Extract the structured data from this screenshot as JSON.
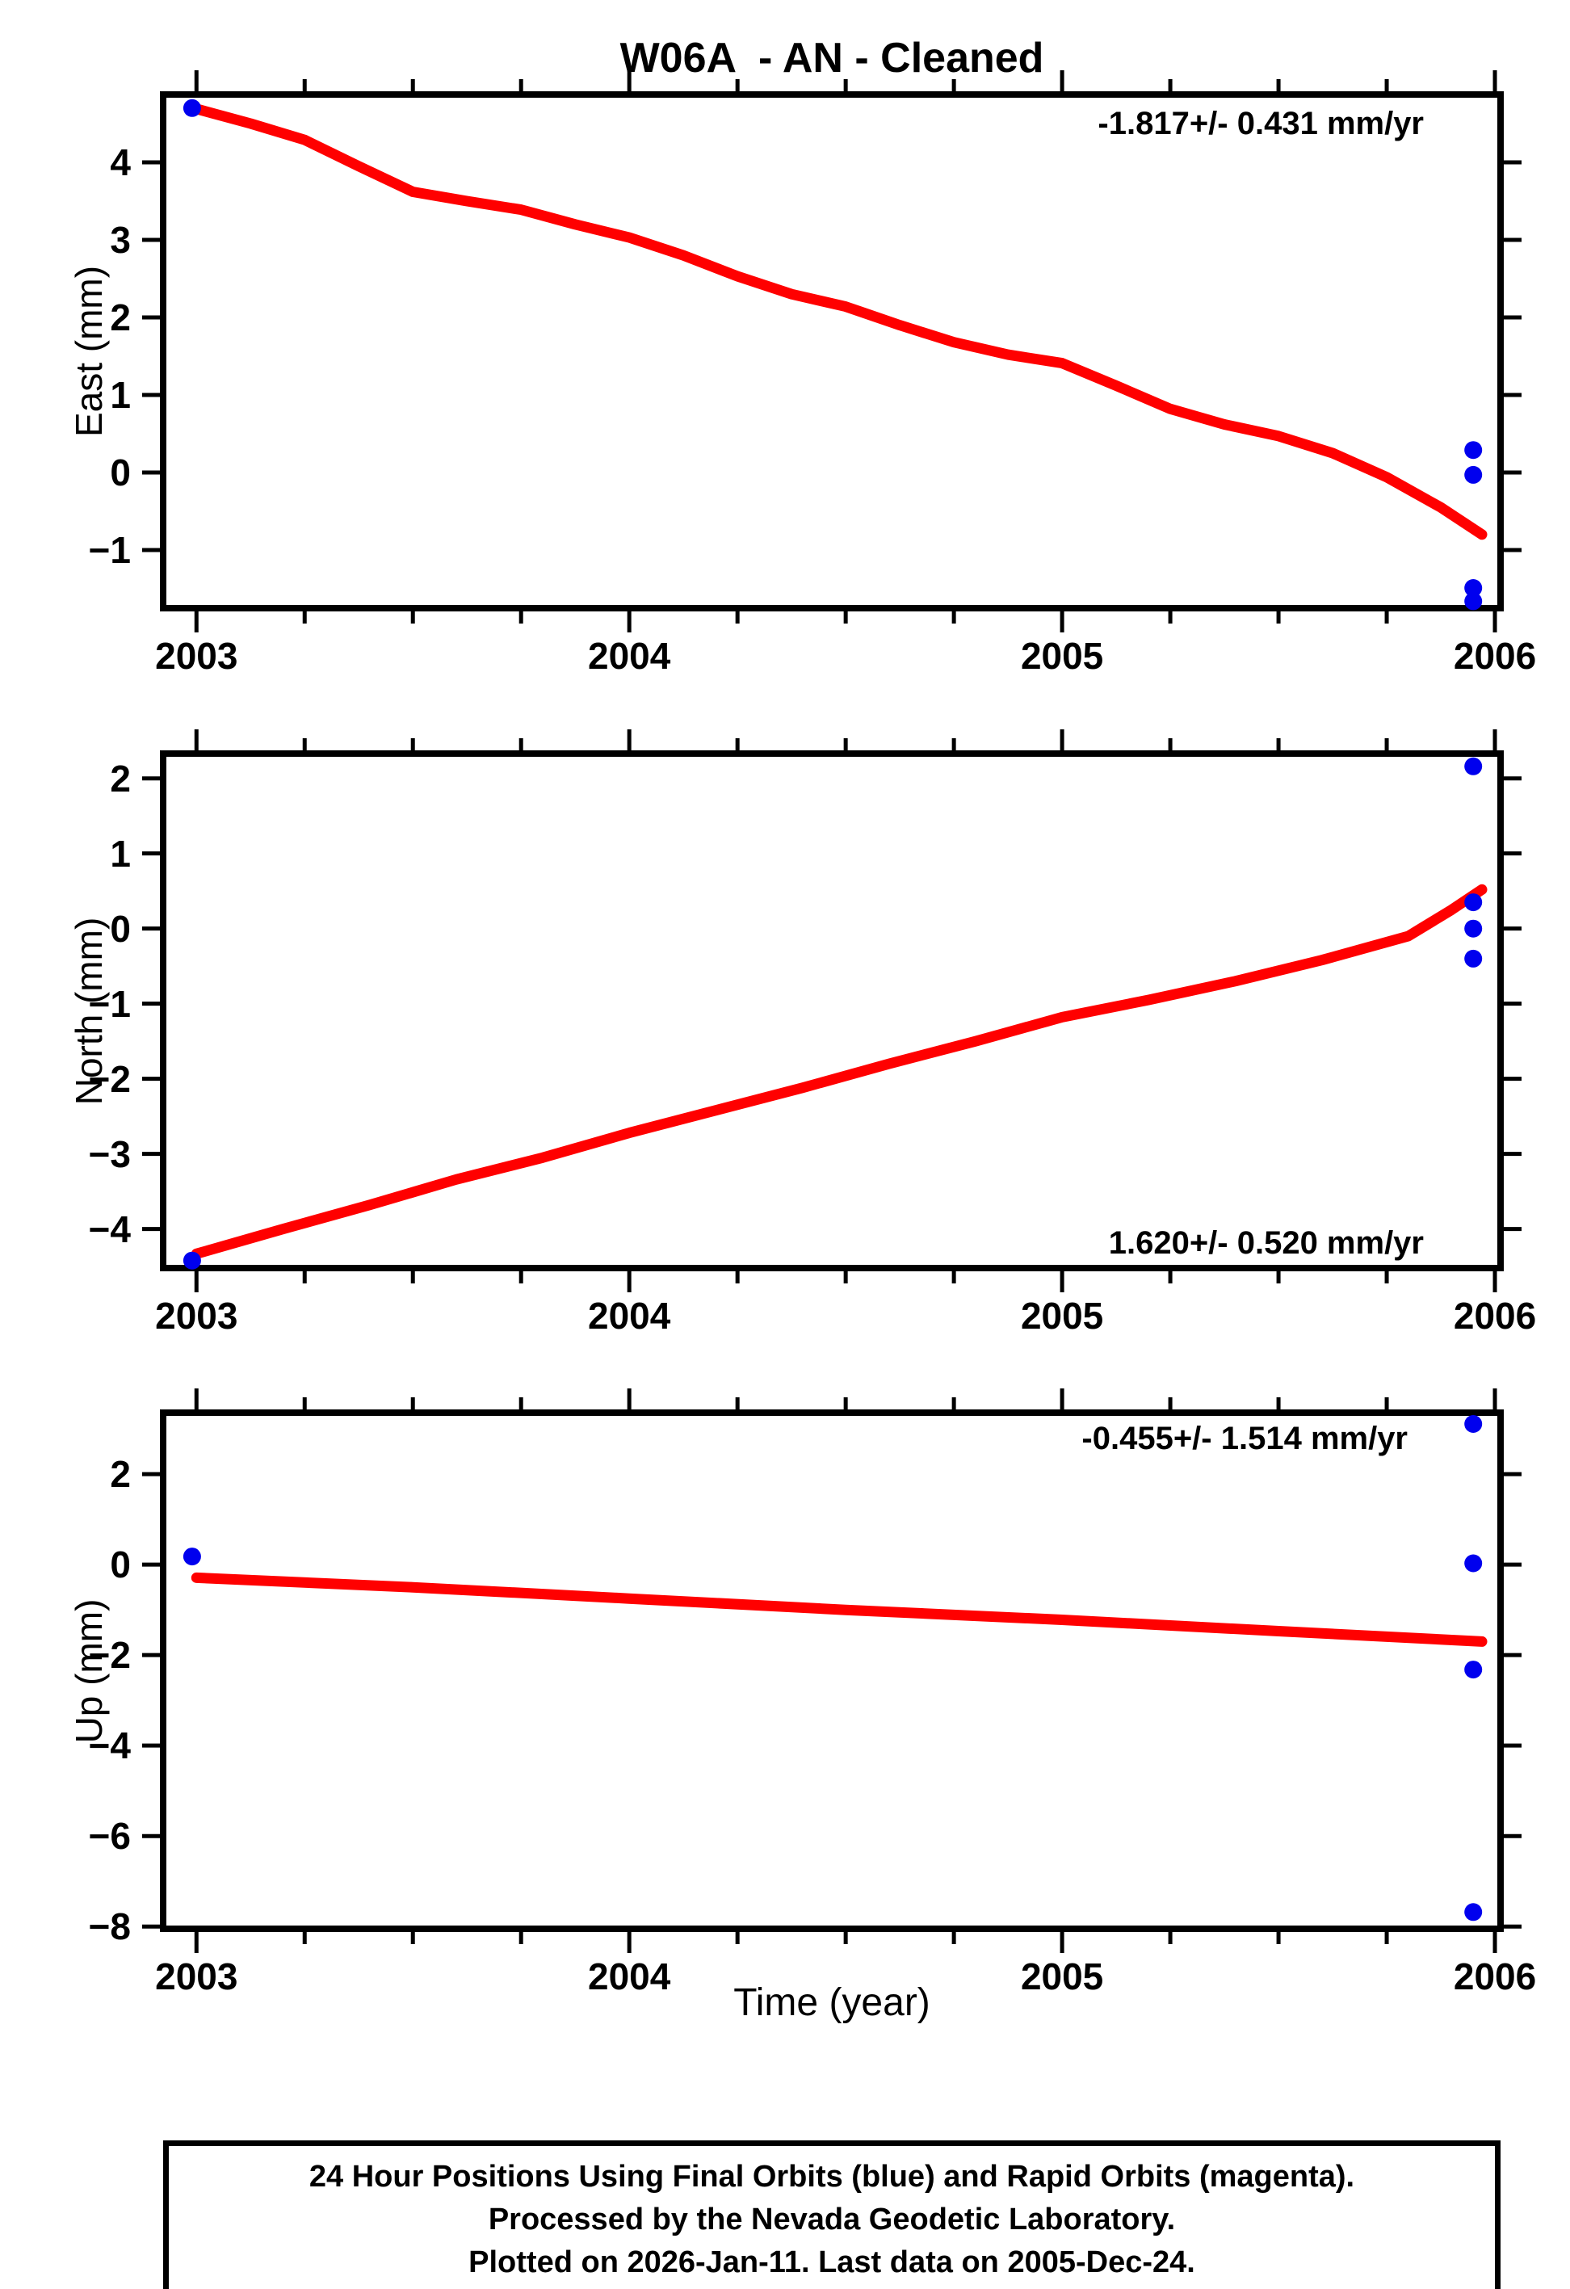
{
  "title": "W06A  - AN - Cleaned",
  "xlabel": "Time (year)",
  "footer": {
    "line1": "24 Hour Positions Using Final Orbits (blue) and Rapid Orbits (magenta).",
    "line2": "Processed by the Nevada Geodetic Laboratory.",
    "line3": "Plotted on 2026-Jan-11. Last data on 2005-Dec-24."
  },
  "colors": {
    "trend_line": "#ff0000",
    "final_orbit_point": "#0000ee",
    "rapid_orbit_point": "#ff00ff",
    "axis": "#000000"
  },
  "chart_data": [
    {
      "type": "line",
      "name": "east",
      "ylabel": "East (mm)",
      "annotation": "-1.817+/- 0.431 mm/yr",
      "annotation_pos": "top-right",
      "annotation_offset": {
        "top": 14,
        "right": 95
      },
      "xlim": [
        2002.923,
        2006.013
      ],
      "ylim": [
        -1.75,
        4.875
      ],
      "yticks": [
        -1,
        0,
        1,
        2,
        3,
        4
      ],
      "xticks": [
        2003,
        2004,
        2005,
        2006
      ],
      "xminor_step": 0.25,
      "line": [
        [
          2003.0,
          4.69
        ],
        [
          2003.125,
          4.5
        ],
        [
          2003.25,
          4.29
        ],
        [
          2003.375,
          3.95
        ],
        [
          2003.5,
          3.62
        ],
        [
          2003.625,
          3.5
        ],
        [
          2003.75,
          3.39
        ],
        [
          2003.875,
          3.2
        ],
        [
          2004.0,
          3.03
        ],
        [
          2004.125,
          2.8
        ],
        [
          2004.25,
          2.53
        ],
        [
          2004.375,
          2.3
        ],
        [
          2004.5,
          2.14
        ],
        [
          2004.625,
          1.9
        ],
        [
          2004.75,
          1.68
        ],
        [
          2004.875,
          1.52
        ],
        [
          2005.0,
          1.41
        ],
        [
          2005.125,
          1.12
        ],
        [
          2005.25,
          0.82
        ],
        [
          2005.375,
          0.62
        ],
        [
          2005.5,
          0.47
        ],
        [
          2005.625,
          0.25
        ],
        [
          2005.75,
          -0.06
        ],
        [
          2005.875,
          -0.45
        ],
        [
          2005.97,
          -0.8
        ]
      ],
      "points": [
        [
          2002.99,
          4.7
        ],
        [
          2005.95,
          0.29
        ],
        [
          2005.95,
          -0.03
        ],
        [
          2005.95,
          -1.49
        ],
        [
          2005.95,
          -1.66
        ]
      ]
    },
    {
      "type": "line",
      "name": "north",
      "ylabel": "North (mm)",
      "annotation": "1.620+/- 0.520 mm/yr",
      "annotation_pos": "bottom-right",
      "annotation_offset": {
        "bottom": 8,
        "right": 95
      },
      "xlim": [
        2002.923,
        2006.013
      ],
      "ylim": [
        -4.52,
        2.33
      ],
      "yticks": [
        -4,
        -3,
        -2,
        -1,
        0,
        1,
        2
      ],
      "xticks": [
        2003,
        2004,
        2005,
        2006
      ],
      "xminor_step": 0.25,
      "line": [
        [
          2003.0,
          -4.33
        ],
        [
          2003.2,
          -4.0
        ],
        [
          2003.4,
          -3.68
        ],
        [
          2003.6,
          -3.34
        ],
        [
          2003.8,
          -3.05
        ],
        [
          2004.0,
          -2.72
        ],
        [
          2004.2,
          -2.42
        ],
        [
          2004.4,
          -2.12
        ],
        [
          2004.6,
          -1.8
        ],
        [
          2004.8,
          -1.5
        ],
        [
          2005.0,
          -1.18
        ],
        [
          2005.2,
          -0.95
        ],
        [
          2005.4,
          -0.7
        ],
        [
          2005.6,
          -0.42
        ],
        [
          2005.8,
          -0.1
        ],
        [
          2005.9,
          0.25
        ],
        [
          2005.97,
          0.52
        ]
      ],
      "points": [
        [
          2002.99,
          -4.42
        ],
        [
          2005.95,
          2.16
        ],
        [
          2005.95,
          0.35
        ],
        [
          2005.95,
          0.0
        ],
        [
          2005.95,
          -0.4
        ]
      ]
    },
    {
      "type": "line",
      "name": "up",
      "ylabel": "Up (mm)",
      "annotation": "-0.455+/- 1.514 mm/yr",
      "annotation_pos": "top-right",
      "annotation_offset": {
        "top": 10,
        "right": 115
      },
      "xlim": [
        2002.923,
        2006.013
      ],
      "ylim": [
        -8.05,
        3.36
      ],
      "yticks": [
        -8,
        -6,
        -4,
        -2,
        0,
        2
      ],
      "xticks": [
        2003,
        2004,
        2005,
        2006
      ],
      "xminor_step": 0.25,
      "line": [
        [
          2003.0,
          -0.29
        ],
        [
          2003.5,
          -0.5
        ],
        [
          2004.0,
          -0.75
        ],
        [
          2004.5,
          -1.0
        ],
        [
          2005.0,
          -1.22
        ],
        [
          2005.5,
          -1.47
        ],
        [
          2005.97,
          -1.7
        ]
      ],
      "points": [
        [
          2002.99,
          0.18
        ],
        [
          2005.95,
          3.11
        ],
        [
          2005.95,
          0.03
        ],
        [
          2005.95,
          -2.32
        ],
        [
          2005.95,
          -7.68
        ]
      ]
    }
  ]
}
